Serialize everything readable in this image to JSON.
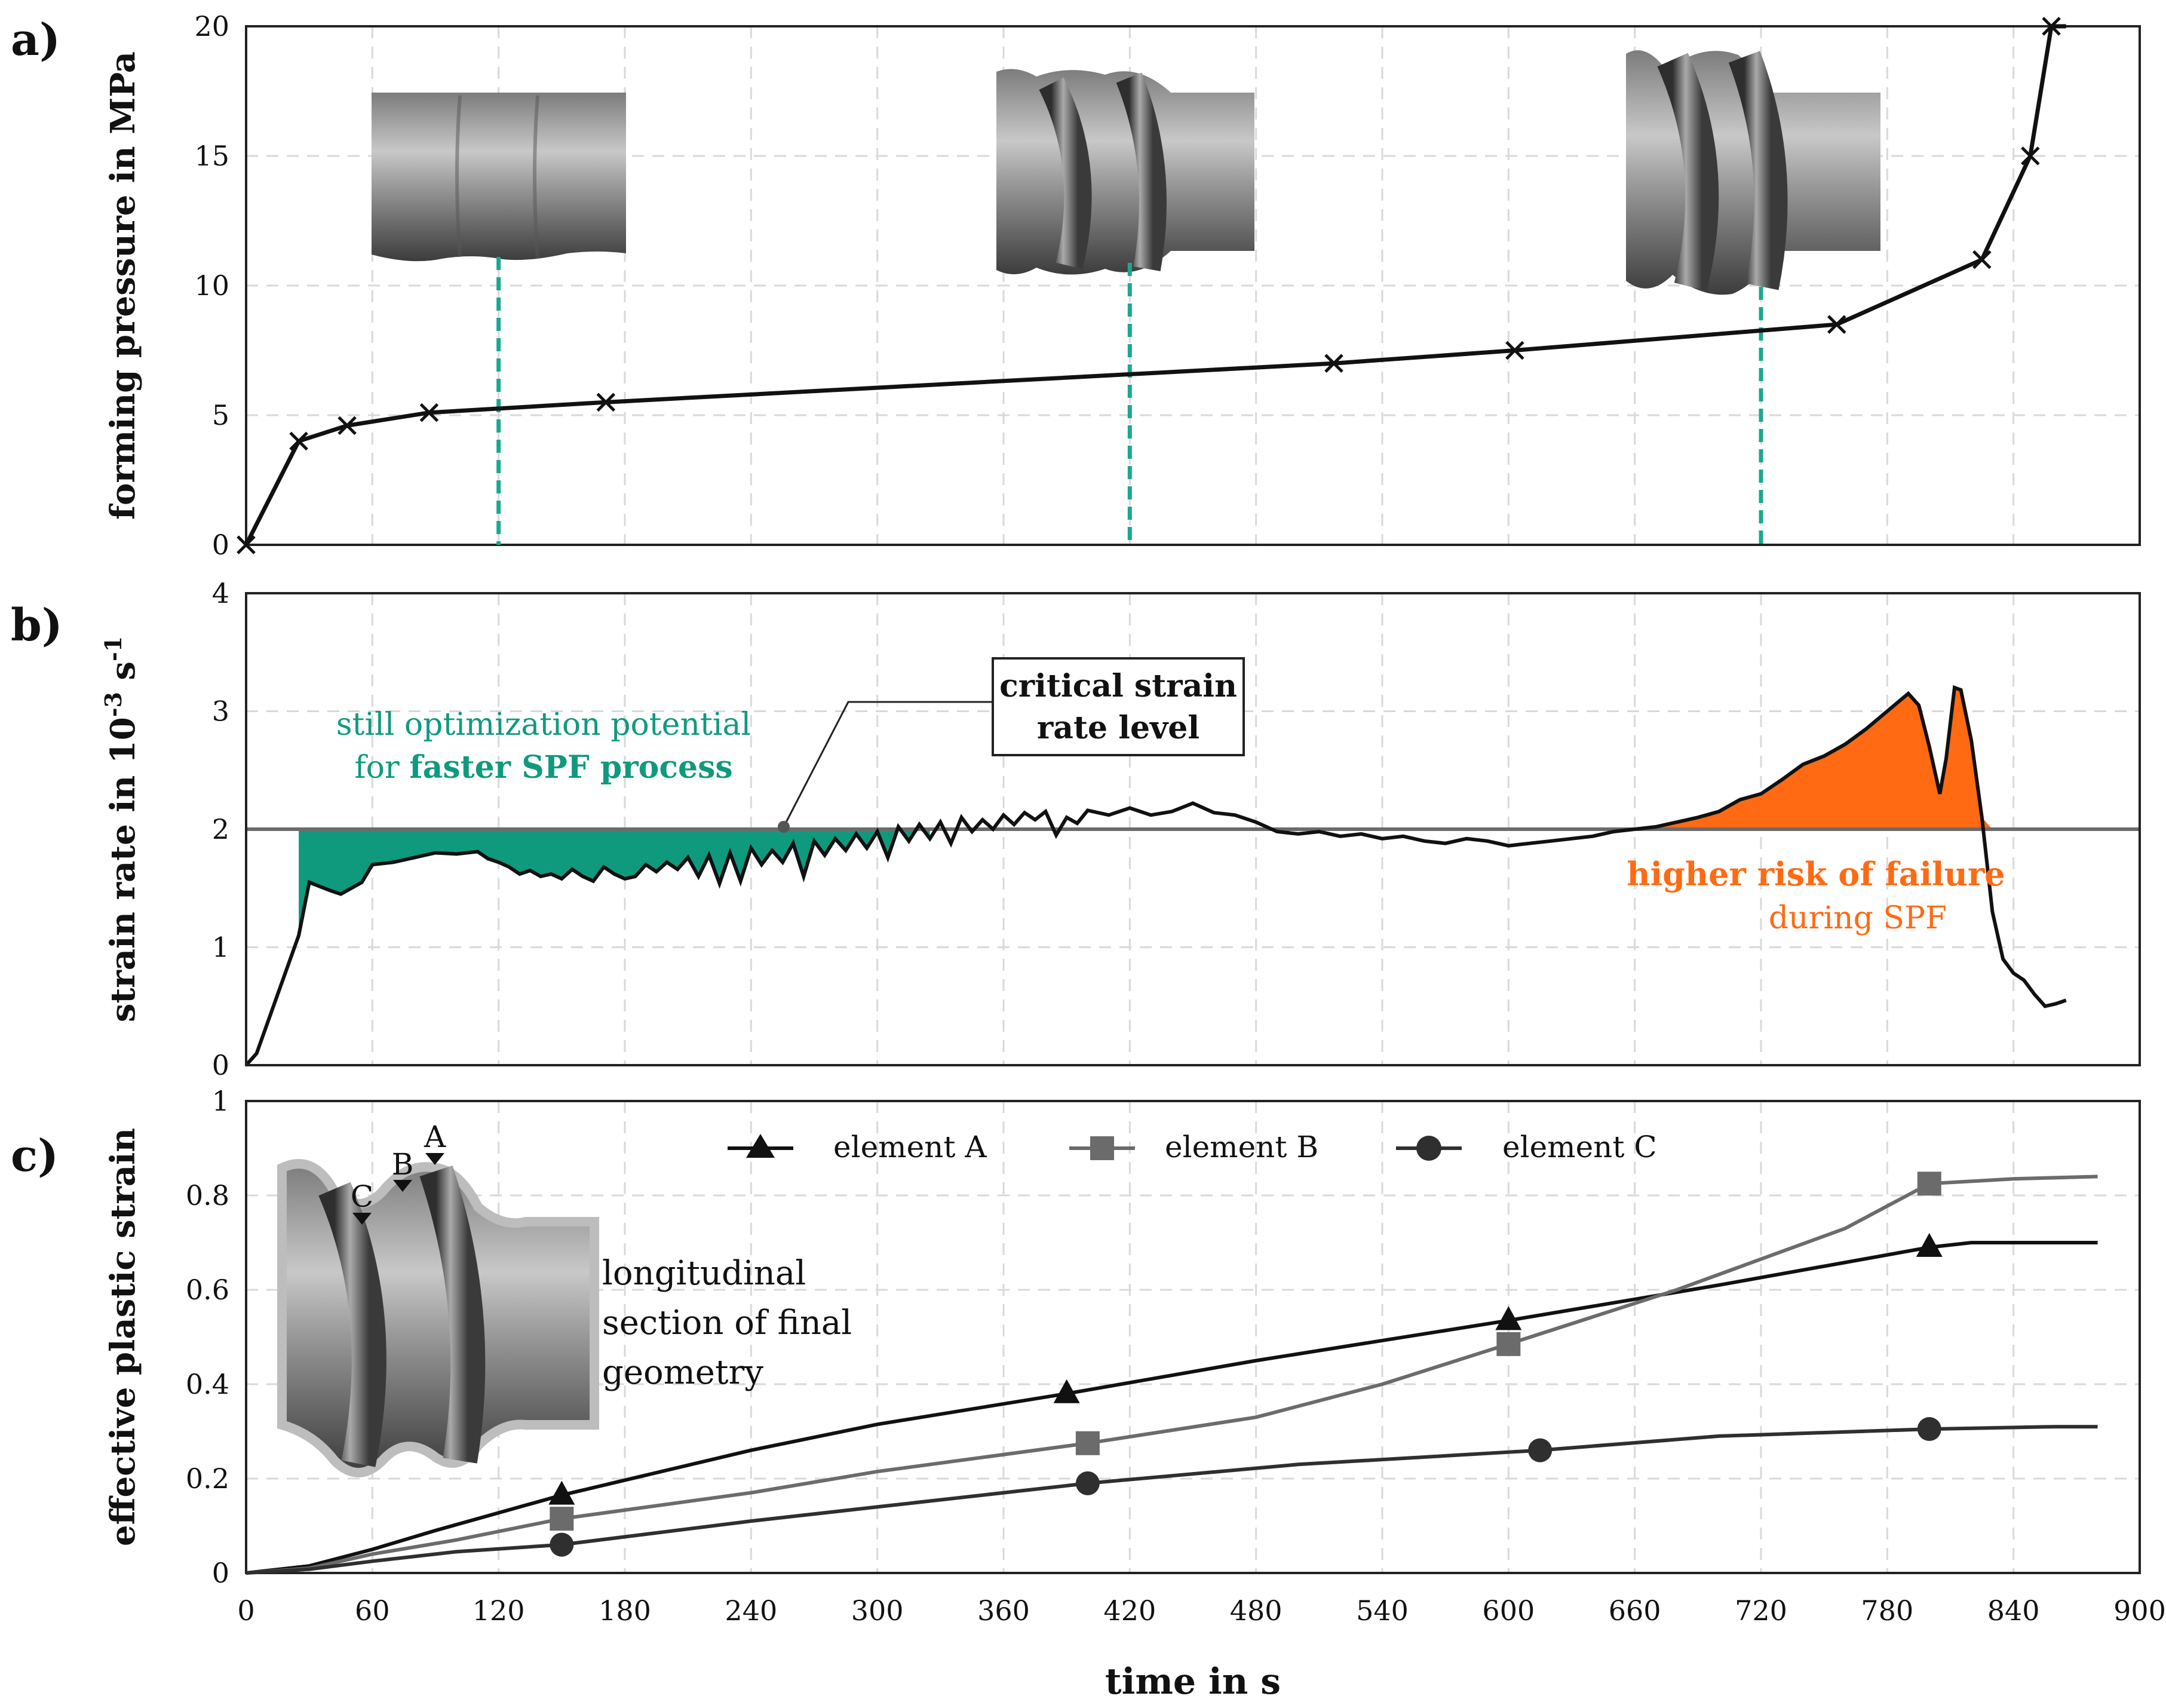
{
  "chart_data": {
    "type": "line",
    "xlabel": "time in s",
    "x_ticks": [
      0,
      60,
      120,
      180,
      240,
      300,
      360,
      420,
      480,
      540,
      600,
      660,
      720,
      780,
      840,
      900
    ],
    "xlim": [
      0,
      900
    ],
    "colors": {
      "black": "#111111",
      "gray": "#6b6b6b",
      "dark": "#2f2f2f",
      "teal": "#0f9a7e",
      "orange": "#ff6a13",
      "dash": "#1aa890"
    },
    "panels": [
      {
        "id": "a",
        "label": "a)",
        "ylabel": "forming pressure in MPa",
        "ylim": [
          0,
          20
        ],
        "y_ticks": [
          0,
          5,
          10,
          15,
          20
        ],
        "series": [
          {
            "name": "forming pressure",
            "marker": "x",
            "x": [
              0,
              25,
              48,
              87,
              171,
              517,
              603,
              756,
              825,
              848,
              858,
              865
            ],
            "y": [
              0,
              4.0,
              4.6,
              5.1,
              5.5,
              7.0,
              7.5,
              8.5,
              11.0,
              15.0,
              20.0,
              20.0
            ]
          }
        ],
        "dashed_markers_x": [
          120,
          420,
          720
        ],
        "insets": [
          "tube-shape-early",
          "tube-shape-mid",
          "tube-shape-late"
        ]
      },
      {
        "id": "b",
        "label": "b)",
        "ylabel_main": "strain rate in 10",
        "ylabel_sup1": "-3",
        "ylabel_mid": " s",
        "ylabel_sup2": "-1",
        "ylim": [
          0,
          4
        ],
        "y_ticks": [
          0,
          1,
          2,
          3,
          4
        ],
        "critical_level": 2,
        "series": [
          {
            "name": "strain rate",
            "x": [
              0,
              5,
              15,
              25,
              30,
              40,
              45,
              50,
              55,
              60,
              70,
              80,
              90,
              100,
              110,
              115,
              120,
              125,
              130,
              135,
              140,
              145,
              150,
              155,
              160,
              165,
              170,
              175,
              180,
              185,
              190,
              195,
              200,
              205,
              210,
              215,
              220,
              225,
              230,
              235,
              240,
              245,
              250,
              255,
              260,
              265,
              270,
              275,
              280,
              285,
              290,
              295,
              300,
              305,
              310,
              315,
              320,
              325,
              330,
              335,
              340,
              345,
              350,
              355,
              360,
              365,
              370,
              375,
              380,
              385,
              390,
              395,
              400,
              410,
              420,
              430,
              440,
              450,
              460,
              470,
              480,
              490,
              500,
              510,
              520,
              530,
              540,
              550,
              560,
              570,
              580,
              590,
              600,
              610,
              620,
              630,
              640,
              650,
              660,
              670,
              680,
              690,
              700,
              710,
              720,
              730,
              740,
              750,
              760,
              770,
              780,
              790,
              795,
              800,
              805,
              808,
              812,
              815,
              820,
              825,
              830,
              835,
              840,
              845,
              850,
              855,
              860,
              865
            ],
            "y": [
              0,
              0.1,
              0.6,
              1.1,
              1.55,
              1.48,
              1.45,
              1.5,
              1.55,
              1.7,
              1.72,
              1.76,
              1.8,
              1.79,
              1.81,
              1.75,
              1.72,
              1.68,
              1.62,
              1.65,
              1.6,
              1.62,
              1.58,
              1.66,
              1.6,
              1.56,
              1.68,
              1.62,
              1.58,
              1.6,
              1.7,
              1.64,
              1.72,
              1.66,
              1.76,
              1.6,
              1.78,
              1.54,
              1.8,
              1.56,
              1.84,
              1.7,
              1.82,
              1.72,
              1.88,
              1.6,
              1.9,
              1.78,
              1.92,
              1.82,
              1.96,
              1.84,
              1.98,
              1.76,
              2.02,
              1.9,
              2.04,
              1.92,
              2.06,
              1.88,
              2.1,
              1.98,
              2.08,
              2.0,
              2.12,
              2.04,
              2.14,
              2.08,
              2.15,
              1.95,
              2.1,
              2.05,
              2.16,
              2.12,
              2.18,
              2.12,
              2.15,
              2.22,
              2.14,
              2.12,
              2.06,
              1.98,
              1.96,
              1.98,
              1.94,
              1.96,
              1.92,
              1.94,
              1.9,
              1.88,
              1.92,
              1.9,
              1.86,
              1.88,
              1.9,
              1.92,
              1.94,
              1.98,
              2.0,
              2.02,
              2.06,
              2.1,
              2.15,
              2.25,
              2.3,
              2.42,
              2.55,
              2.62,
              2.72,
              2.85,
              3.0,
              3.15,
              3.05,
              2.7,
              2.3,
              2.6,
              3.2,
              3.18,
              2.75,
              2.1,
              1.3,
              0.9,
              0.78,
              0.72,
              0.6,
              0.5,
              0.52,
              0.55
            ],
            "fill_below_from": 25,
            "fill_below_to": 325,
            "fill_above_from": 660,
            "fill_above_to": 840
          }
        ],
        "annotations": {
          "teal_line1": "still optimization potential",
          "teal_line2_normal": "for ",
          "teal_line2_bold": "faster SPF process",
          "box_line1": "critical strain",
          "box_line2": "rate level",
          "orange_line1": "higher risk of failure",
          "orange_line2": "during SPF"
        }
      },
      {
        "id": "c",
        "label": "c)",
        "ylabel": "effective plastic strain",
        "ylim": [
          0,
          1
        ],
        "y_ticks": [
          0,
          0.2,
          0.4,
          0.6,
          0.8,
          1
        ],
        "y_tick_labels": [
          "0",
          "0.2",
          "0.4",
          "0.6",
          "0.8",
          "1"
        ],
        "series": [
          {
            "name": "element A",
            "marker": "triangle",
            "x": [
              0,
              30,
              60,
              90,
              150,
              240,
              300,
              390,
              480,
              600,
              700,
              800,
              820,
              860,
              880
            ],
            "y": [
              0,
              0.015,
              0.05,
              0.09,
              0.165,
              0.26,
              0.315,
              0.38,
              0.45,
              0.535,
              0.61,
              0.69,
              0.7,
              0.7,
              0.7
            ],
            "marker_x": [
              150,
              390,
              600,
              800
            ]
          },
          {
            "name": "element B",
            "marker": "square",
            "x": [
              0,
              30,
              60,
              100,
              150,
              240,
              300,
              400,
              480,
              540,
              600,
              680,
              760,
              800,
              840,
              880
            ],
            "y": [
              0,
              0.01,
              0.04,
              0.07,
              0.115,
              0.17,
              0.215,
              0.275,
              0.33,
              0.4,
              0.485,
              0.6,
              0.73,
              0.825,
              0.835,
              0.84
            ],
            "marker_x": [
              150,
              400,
              600,
              800
            ]
          },
          {
            "name": "element C",
            "marker": "circle",
            "x": [
              0,
              30,
              60,
              100,
              150,
              240,
              300,
              400,
              500,
              615,
              700,
              800,
              860,
              880
            ],
            "y": [
              0,
              0.008,
              0.025,
              0.045,
              0.06,
              0.11,
              0.14,
              0.19,
              0.23,
              0.26,
              0.29,
              0.305,
              0.31,
              0.31
            ],
            "marker_x": [
              150,
              400,
              615,
              800
            ]
          }
        ],
        "inset_labels": [
          "A",
          "B",
          "C"
        ],
        "inset_caption": [
          "longitudinal",
          "section of final",
          "geometry"
        ]
      }
    ]
  }
}
